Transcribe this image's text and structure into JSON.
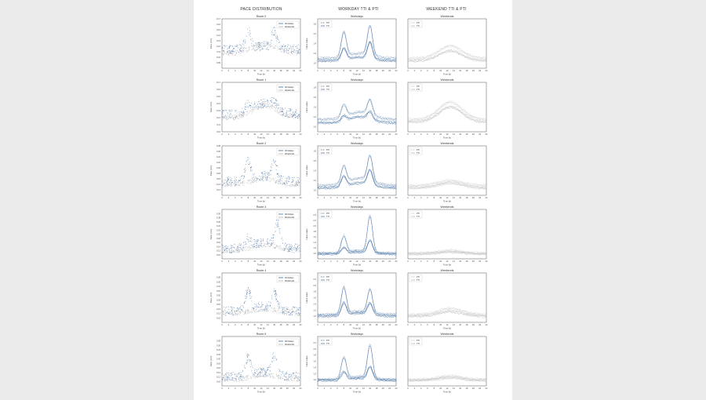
{
  "columns": [
    "PACE DISTRIBUTION",
    "WORKDAY TTI & PTI",
    "WEEKEND TTI & PTI"
  ],
  "colors": {
    "workday": "#3d6a9e",
    "weekend": "#b5b5b5",
    "frame": "#555555"
  },
  "chart_data": [
    {
      "type": "scatter",
      "row": 0,
      "col": 0,
      "title": "Route 0",
      "xlabel": "Time (h)",
      "ylabel": "Pace (min)",
      "xlim": [
        0,
        24
      ],
      "ylim": [
        0.08,
        0.17
      ],
      "xticks": [
        0,
        2,
        4,
        6,
        8,
        10,
        12,
        14,
        16,
        18,
        20,
        22,
        24
      ],
      "yticks": [
        "0.09",
        "0.10",
        "0.11",
        "0.12",
        "0.13",
        "0.14",
        "0.15",
        "0.16",
        "0.17"
      ],
      "legend": [
        "Workdays",
        "Weekends"
      ],
      "legend_loc": "top-right",
      "series": [
        {
          "name": "Workdays",
          "peaks": [
            [
              8,
              0.155
            ],
            [
              16,
              0.15
            ]
          ],
          "base": [
            0.115,
            0.12
          ]
        },
        {
          "name": "Weekends",
          "base": [
            0.108,
            0.125
          ]
        }
      ]
    },
    {
      "type": "line",
      "row": 0,
      "col": 1,
      "title": "Workdays",
      "xlabel": "Time (h)",
      "ylabel": "Index value",
      "xlim": [
        0,
        24
      ],
      "ylim": [
        0.9,
        1.9
      ],
      "xticks": [
        0,
        2,
        4,
        6,
        8,
        10,
        12,
        14,
        16,
        18,
        20,
        22,
        24
      ],
      "yticks": [
        "1.0",
        "1.2",
        "1.4",
        "1.6",
        "1.8"
      ],
      "legend": [
        "PTI",
        "TTI"
      ],
      "legend_loc": "top-left",
      "series": [
        {
          "name": "PTI",
          "peaks": [
            [
              8,
              1.7
            ],
            [
              16,
              1.8
            ]
          ],
          "base": [
            1.1,
            1.2
          ]
        },
        {
          "name": "TTI",
          "peaks": [
            [
              8,
              1.35
            ],
            [
              16,
              1.45
            ]
          ],
          "base": [
            1.05,
            1.12
          ]
        }
      ]
    },
    {
      "type": "line",
      "row": 0,
      "col": 2,
      "title": "Weekends",
      "xlabel": "Time (h)",
      "ylabel": "",
      "xlim": [
        0,
        24
      ],
      "ylim": [
        0.9,
        1.9
      ],
      "xticks": [
        0,
        2,
        4,
        6,
        8,
        10,
        12,
        14,
        16,
        18,
        20,
        22,
        24
      ],
      "yticks": [],
      "legend": [
        "PTI",
        "TTI"
      ],
      "legend_loc": "top-left",
      "series": [
        {
          "name": "PTI",
          "base": [
            1.1,
            1.35
          ]
        },
        {
          "name": "TTI",
          "base": [
            1.05,
            1.25
          ]
        }
      ]
    },
    {
      "type": "scatter",
      "row": 1,
      "col": 0,
      "title": "Route 1",
      "xlabel": "Time (h)",
      "ylabel": "Pace (min)",
      "xlim": [
        0,
        24
      ],
      "ylim": [
        0.1,
        0.17
      ],
      "xticks": [
        0,
        2,
        4,
        6,
        8,
        10,
        12,
        14,
        16,
        18,
        20,
        22,
        24
      ],
      "yticks": [
        "0.10",
        "0.11",
        "0.12",
        "0.13",
        "0.14",
        "0.15",
        "0.16",
        "0.17"
      ],
      "legend": [
        "Workdays",
        "Weekends"
      ],
      "legend_loc": "top-right",
      "series": [
        {
          "name": "Workdays",
          "peaks": [
            [
              8,
              0.15
            ],
            [
              16,
              0.148
            ]
          ],
          "base": [
            0.125,
            0.14
          ]
        },
        {
          "name": "Weekends",
          "base": [
            0.12,
            0.138
          ]
        }
      ]
    },
    {
      "type": "line",
      "row": 1,
      "col": 1,
      "title": "Workdays",
      "xlabel": "Time (h)",
      "ylabel": "Index value",
      "xlim": [
        0,
        24
      ],
      "ylim": [
        0.9,
        1.9
      ],
      "xticks": [
        0,
        2,
        4,
        6,
        8,
        10,
        12,
        14,
        16,
        18,
        20,
        22,
        24
      ],
      "yticks": [
        "1.0",
        "1.2",
        "1.4",
        "1.6",
        "1.8"
      ],
      "legend": [
        "PTI",
        "TTI"
      ],
      "legend_loc": "top-left",
      "series": [
        {
          "name": "PTI",
          "peaks": [
            [
              8,
              1.55
            ],
            [
              16,
              1.6
            ]
          ],
          "base": [
            1.15,
            1.3
          ]
        },
        {
          "name": "TTI",
          "peaks": [
            [
              8,
              1.3
            ],
            [
              16,
              1.35
            ]
          ],
          "base": [
            1.08,
            1.2
          ]
        }
      ]
    },
    {
      "type": "line",
      "row": 1,
      "col": 2,
      "title": "Weekends",
      "xlabel": "Time (h)",
      "ylabel": "",
      "xlim": [
        0,
        24
      ],
      "ylim": [
        0.9,
        1.9
      ],
      "xticks": [
        0,
        2,
        4,
        6,
        8,
        10,
        12,
        14,
        16,
        18,
        20,
        22,
        24
      ],
      "yticks": [],
      "legend": [
        "PTI",
        "TTI"
      ],
      "legend_loc": "top-left",
      "series": [
        {
          "name": "PTI",
          "base": [
            1.15,
            1.5
          ]
        },
        {
          "name": "TTI",
          "base": [
            1.1,
            1.4
          ]
        }
      ]
    },
    {
      "type": "scatter",
      "row": 2,
      "col": 0,
      "title": "Route 2",
      "xlabel": "Time (h)",
      "ylabel": "Pace (min)",
      "xlim": [
        0,
        24
      ],
      "ylim": [
        0.1,
        0.28
      ],
      "xticks": [
        0,
        2,
        4,
        6,
        8,
        10,
        12,
        14,
        16,
        18,
        20,
        22,
        24
      ],
      "yticks": [
        "0.12",
        "0.14",
        "0.16",
        "0.18",
        "0.20",
        "0.22",
        "0.24",
        "0.26",
        "0.28"
      ],
      "legend": [
        "Workdays",
        "Weekends"
      ],
      "legend_loc": "top-right",
      "series": [
        {
          "name": "Workdays",
          "peaks": [
            [
              8,
              0.24
            ],
            [
              16,
              0.23
            ]
          ],
          "base": [
            0.15,
            0.17
          ]
        },
        {
          "name": "Weekends",
          "base": [
            0.14,
            0.16
          ]
        }
      ]
    },
    {
      "type": "line",
      "row": 2,
      "col": 1,
      "title": "Workdays",
      "xlabel": "Time (h)",
      "ylabel": "Index value",
      "xlim": [
        0,
        24
      ],
      "ylim": [
        0.9,
        1.9
      ],
      "xticks": [
        0,
        2,
        4,
        6,
        8,
        10,
        12,
        14,
        16,
        18,
        20,
        22,
        24
      ],
      "yticks": [
        "1.0",
        "1.2",
        "1.4",
        "1.6",
        "1.8"
      ],
      "legend": [
        "PTI",
        "TTI"
      ],
      "legend_loc": "top-left",
      "series": [
        {
          "name": "PTI",
          "peaks": [
            [
              8,
              1.6
            ],
            [
              16,
              1.75
            ]
          ],
          "base": [
            1.1,
            1.25
          ]
        },
        {
          "name": "TTI",
          "peaks": [
            [
              8,
              1.35
            ],
            [
              16,
              1.45
            ]
          ],
          "base": [
            1.05,
            1.15
          ]
        }
      ]
    },
    {
      "type": "line",
      "row": 2,
      "col": 2,
      "title": "Weekends",
      "xlabel": "Time (h)",
      "ylabel": "",
      "xlim": [
        0,
        24
      ],
      "ylim": [
        0.9,
        1.9
      ],
      "xticks": [
        0,
        2,
        4,
        6,
        8,
        10,
        12,
        14,
        16,
        18,
        20,
        22,
        24
      ],
      "yticks": [],
      "legend": [
        "PTI",
        "TTI"
      ],
      "legend_loc": "top-left",
      "series": [
        {
          "name": "PTI",
          "base": [
            1.1,
            1.2
          ]
        },
        {
          "name": "TTI",
          "base": [
            1.05,
            1.15
          ]
        }
      ]
    },
    {
      "type": "scatter",
      "row": 3,
      "col": 0,
      "title": "Route 3",
      "xlabel": "Time (h)",
      "ylabel": "Pace (min)",
      "xlim": [
        0,
        24
      ],
      "ylim": [
        0.08,
        0.32
      ],
      "xticks": [
        0,
        2,
        4,
        6,
        8,
        10,
        12,
        14,
        16,
        18,
        20,
        22,
        24
      ],
      "yticks": [
        "0.10",
        "0.12",
        "0.14",
        "0.16",
        "0.18",
        "0.20",
        "0.22",
        "0.24",
        "0.26",
        "0.28",
        "0.30"
      ],
      "legend": [
        "Workdays",
        "Weekends"
      ],
      "legend_loc": "top-right",
      "series": [
        {
          "name": "Workdays",
          "peaks": [
            [
              8,
              0.2
            ],
            [
              17,
              0.27
            ]
          ],
          "base": [
            0.13,
            0.16
          ]
        },
        {
          "name": "Weekends",
          "base": [
            0.12,
            0.15
          ]
        }
      ]
    },
    {
      "type": "line",
      "row": 3,
      "col": 1,
      "title": "Workdays",
      "xlabel": "Time (h)",
      "ylabel": "Index value",
      "xlim": [
        0,
        24
      ],
      "ylim": [
        0.8,
        2.6
      ],
      "xticks": [
        0,
        2,
        4,
        6,
        8,
        10,
        12,
        14,
        16,
        18,
        20,
        22,
        24
      ],
      "yticks": [
        "1.0",
        "1.2",
        "1.4",
        "1.6",
        "1.8",
        "2.0",
        "2.2",
        "2.4"
      ],
      "legend": [
        "PTI",
        "TTI"
      ],
      "legend_loc": "top-left",
      "series": [
        {
          "name": "PTI",
          "peaks": [
            [
              8,
              1.7
            ],
            [
              16,
              2.4
            ]
          ],
          "base": [
            1.0,
            1.1
          ]
        },
        {
          "name": "TTI",
          "peaks": [
            [
              8,
              1.25
            ],
            [
              16,
              1.5
            ]
          ],
          "base": [
            0.98,
            1.05
          ]
        }
      ]
    },
    {
      "type": "line",
      "row": 3,
      "col": 2,
      "title": "Weekends",
      "xlabel": "Time (h)",
      "ylabel": "",
      "xlim": [
        0,
        24
      ],
      "ylim": [
        0.8,
        2.6
      ],
      "xticks": [
        0,
        2,
        4,
        6,
        8,
        10,
        12,
        14,
        16,
        18,
        20,
        22,
        24
      ],
      "yticks": [],
      "legend": [
        "PTI",
        "TTI"
      ],
      "legend_loc": "top-left",
      "series": [
        {
          "name": "PTI",
          "base": [
            1.0,
            1.1
          ]
        },
        {
          "name": "TTI",
          "base": [
            0.98,
            1.05
          ]
        }
      ]
    },
    {
      "type": "scatter",
      "row": 4,
      "col": 0,
      "title": "Route 4",
      "xlabel": "Time (h)",
      "ylabel": "Pace (min)",
      "xlim": [
        0,
        24
      ],
      "ylim": [
        0.08,
        0.3
      ],
      "xticks": [
        0,
        2,
        4,
        6,
        8,
        10,
        12,
        14,
        16,
        18,
        20,
        22,
        24
      ],
      "yticks": [
        "0.10",
        "0.12",
        "0.14",
        "0.16",
        "0.18",
        "0.20",
        "0.22",
        "0.24",
        "0.26",
        "0.28"
      ],
      "legend": [
        "Workdays",
        "Weekends"
      ],
      "legend_loc": "top-right",
      "series": [
        {
          "name": "Workdays",
          "peaks": [
            [
              8,
              0.24
            ],
            [
              16,
              0.22
            ]
          ],
          "base": [
            0.13,
            0.15
          ]
        },
        {
          "name": "Weekends",
          "base": [
            0.12,
            0.14
          ]
        }
      ]
    },
    {
      "type": "line",
      "row": 4,
      "col": 1,
      "title": "Workdays",
      "xlabel": "Time (h)",
      "ylabel": "Index value",
      "xlim": [
        0,
        24
      ],
      "ylim": [
        0.8,
        2.4
      ],
      "xticks": [
        0,
        2,
        4,
        6,
        8,
        10,
        12,
        14,
        16,
        18,
        20,
        22,
        24
      ],
      "yticks": [
        "1.0",
        "1.2",
        "1.4",
        "1.6",
        "1.8",
        "2.0",
        "2.2"
      ],
      "legend": [
        "PTI",
        "TTI"
      ],
      "legend_loc": "top-left",
      "series": [
        {
          "name": "PTI",
          "peaks": [
            [
              8,
              2.0
            ],
            [
              16,
              1.9
            ]
          ],
          "base": [
            1.05,
            1.15
          ]
        },
        {
          "name": "TTI",
          "peaks": [
            [
              8,
              1.5
            ],
            [
              16,
              1.45
            ]
          ],
          "base": [
            1.0,
            1.1
          ]
        }
      ]
    },
    {
      "type": "line",
      "row": 4,
      "col": 2,
      "title": "Weekends",
      "xlabel": "Time (h)",
      "ylabel": "",
      "xlim": [
        0,
        24
      ],
      "ylim": [
        0.8,
        2.4
      ],
      "xticks": [
        0,
        2,
        4,
        6,
        8,
        10,
        12,
        14,
        16,
        18,
        20,
        22,
        24
      ],
      "yticks": [],
      "legend": [
        "PTI",
        "TTI"
      ],
      "legend_loc": "top-left",
      "series": [
        {
          "name": "PTI",
          "base": [
            1.05,
            1.25
          ]
        },
        {
          "name": "TTI",
          "base": [
            1.0,
            1.15
          ]
        }
      ]
    },
    {
      "type": "scatter",
      "row": 5,
      "col": 0,
      "title": "Route 5",
      "xlabel": "Time (h)",
      "ylabel": "Pace (min)",
      "xlim": [
        0,
        24
      ],
      "ylim": [
        0.08,
        0.3
      ],
      "xticks": [
        0,
        2,
        4,
        6,
        8,
        10,
        12,
        14,
        16,
        18,
        20,
        22,
        24
      ],
      "yticks": [
        "0.10",
        "0.12",
        "0.14",
        "0.16",
        "0.18",
        "0.20",
        "0.22",
        "0.24",
        "0.26",
        "0.28"
      ],
      "legend": [
        "Workdays",
        "Weekends"
      ],
      "legend_loc": "top-right",
      "series": [
        {
          "name": "Workdays",
          "peaks": [
            [
              8,
              0.22
            ],
            [
              16,
              0.22
            ]
          ],
          "base": [
            0.12,
            0.14
          ]
        },
        {
          "name": "Weekends",
          "base": [
            0.11,
            0.13
          ]
        }
      ]
    },
    {
      "type": "line",
      "row": 5,
      "col": 1,
      "title": "Workdays",
      "xlabel": "Time (h)",
      "ylabel": "Index value",
      "xlim": [
        0,
        24
      ],
      "ylim": [
        0.8,
        2.4
      ],
      "xticks": [
        0,
        2,
        4,
        6,
        8,
        10,
        12,
        14,
        16,
        18,
        20,
        22,
        24
      ],
      "yticks": [
        "1.0",
        "1.2",
        "1.4",
        "1.6",
        "1.8",
        "2.0",
        "2.2"
      ],
      "legend": [
        "PTI",
        "TTI"
      ],
      "legend_loc": "top-left",
      "series": [
        {
          "name": "PTI",
          "peaks": [
            [
              8,
              1.8
            ],
            [
              16,
              2.15
            ]
          ],
          "base": [
            1.0,
            1.1
          ]
        },
        {
          "name": "TTI",
          "peaks": [
            [
              8,
              1.3
            ],
            [
              16,
              1.45
            ]
          ],
          "base": [
            0.98,
            1.05
          ]
        }
      ]
    },
    {
      "type": "line",
      "row": 5,
      "col": 2,
      "title": "Weekends",
      "xlabel": "Time (h)",
      "ylabel": "",
      "xlim": [
        0,
        24
      ],
      "ylim": [
        0.8,
        2.4
      ],
      "xticks": [
        0,
        2,
        4,
        6,
        8,
        10,
        12,
        14,
        16,
        18,
        20,
        22,
        24
      ],
      "yticks": [],
      "legend": [
        "PTI",
        "TTI"
      ],
      "legend_loc": "top-left",
      "series": [
        {
          "name": "PTI",
          "base": [
            1.0,
            1.12
          ]
        },
        {
          "name": "TTI",
          "base": [
            0.98,
            1.06
          ]
        }
      ]
    }
  ]
}
